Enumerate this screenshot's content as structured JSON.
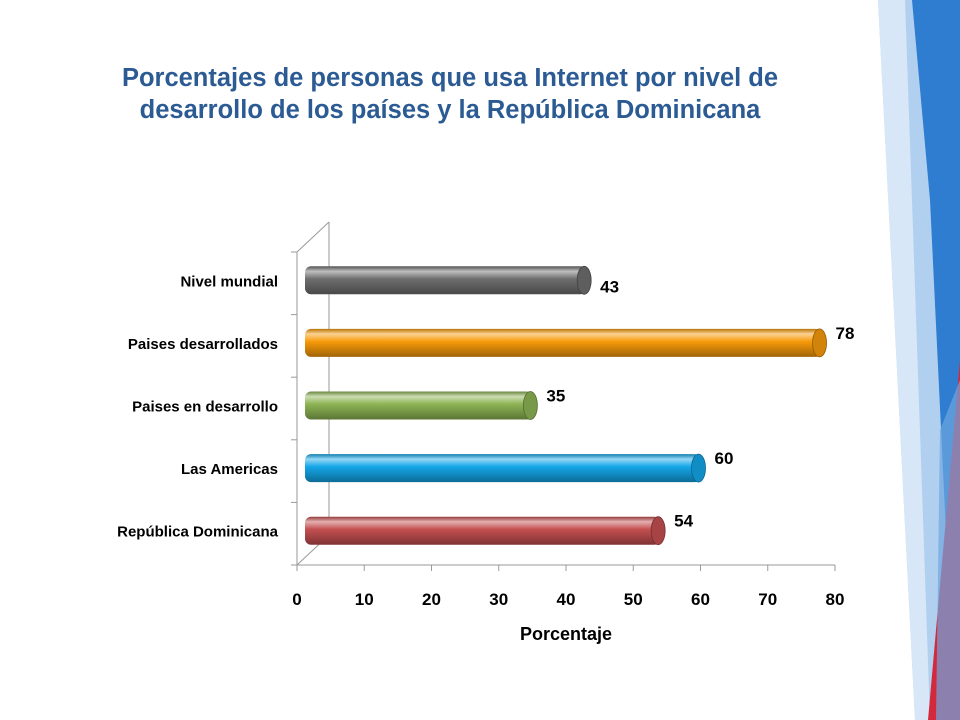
{
  "slide": {
    "title_line1": "Porcentajes de personas que usa Internet por nivel de",
    "title_line2": "desarrollo de los países y la República Dominicana"
  },
  "chart_data": {
    "type": "bar",
    "orientation": "horizontal",
    "categories": [
      "Nivel mundial",
      "Paises desarrollados",
      "Paises en desarrollo",
      "Las Americas",
      "República Dominicana"
    ],
    "values": [
      43,
      78,
      35,
      60,
      54
    ],
    "colors": [
      "#6e6e6e",
      "#f79a0a",
      "#8db454",
      "#14a6e8",
      "#c44f50"
    ],
    "xlabel": "Porcentaje",
    "ylabel": "",
    "xlim": [
      0,
      80
    ],
    "xticks": [
      0,
      10,
      20,
      30,
      40,
      50,
      60,
      70,
      80
    ],
    "grid": false,
    "legend": "none",
    "style": "3d-cylinder"
  },
  "decoration": {
    "colors": [
      "#2e7dd1",
      "#9fc5eb",
      "#d4293c"
    ]
  }
}
